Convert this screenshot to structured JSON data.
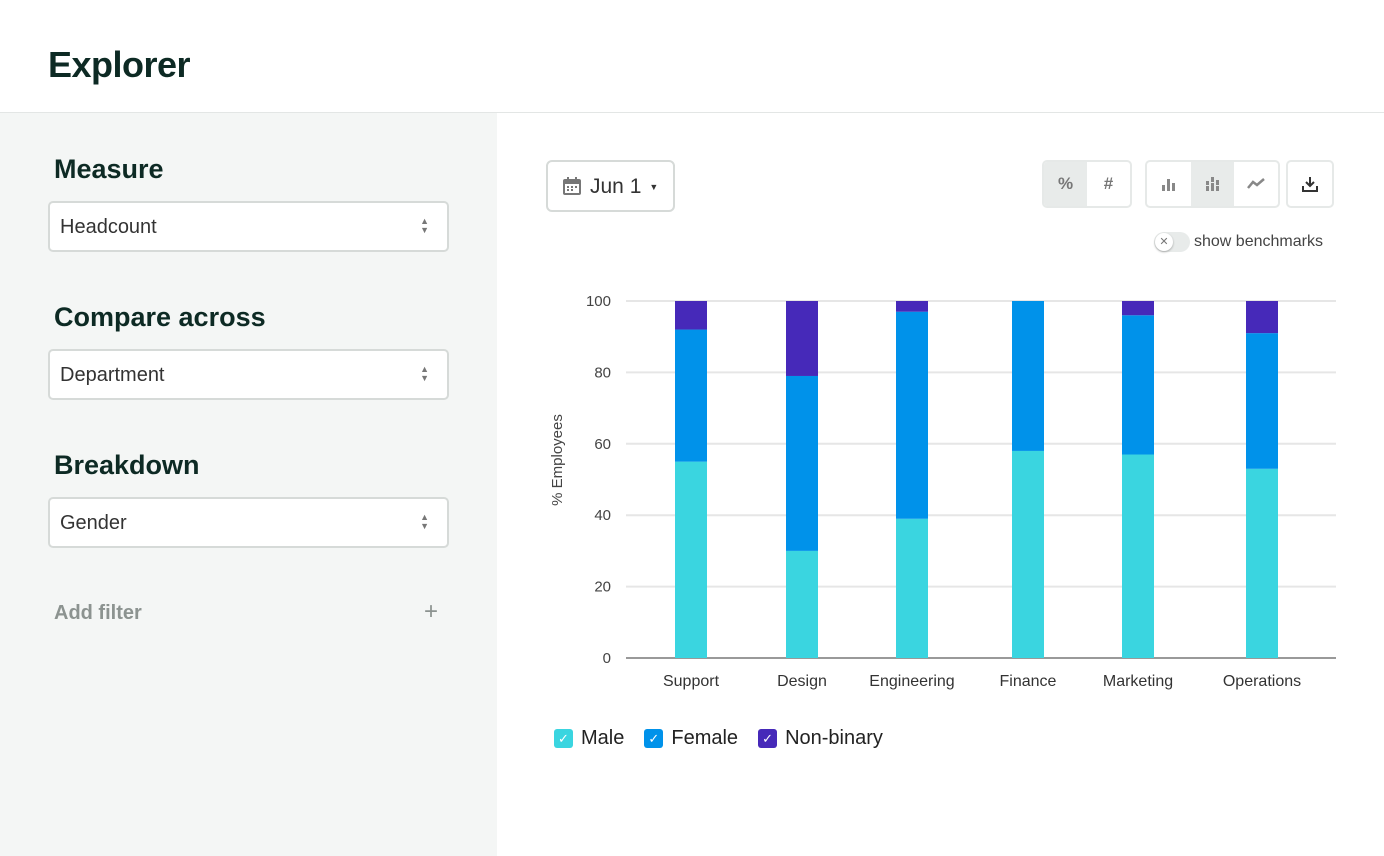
{
  "header": {
    "title": "Explorer"
  },
  "sidebar": {
    "measure": {
      "label": "Measure",
      "value": "Headcount"
    },
    "compare": {
      "label": "Compare across",
      "value": "Department"
    },
    "breakdown": {
      "label": "Breakdown",
      "value": "Gender"
    },
    "add_filter": "Add filter"
  },
  "toolbar": {
    "date": "Jun 1",
    "percent": "%",
    "number": "#",
    "mode_selected": "percent",
    "chart_selected": "stacked-bar",
    "benchmarks_label": "show benchmarks",
    "benchmarks_on": false
  },
  "chart_data": {
    "type": "bar",
    "stacked": true,
    "categories": [
      "Support",
      "Design",
      "Engineering",
      "Finance",
      "Marketing",
      "Operations"
    ],
    "ylabel": "% Employees",
    "ylim": [
      0,
      100
    ],
    "yticks": [
      0,
      20,
      40,
      60,
      80,
      100
    ],
    "grid": true,
    "legend": "bottom-left",
    "series": [
      {
        "name": "Male",
        "color": "#3ad5e0",
        "values": [
          55,
          30,
          39,
          58,
          57,
          53
        ]
      },
      {
        "name": "Female",
        "color": "#0092ea",
        "values": [
          37,
          49,
          58,
          42,
          39,
          38
        ]
      },
      {
        "name": "Non-binary",
        "color": "#4629b9",
        "values": [
          8,
          21,
          3,
          0,
          4,
          9
        ]
      }
    ]
  }
}
